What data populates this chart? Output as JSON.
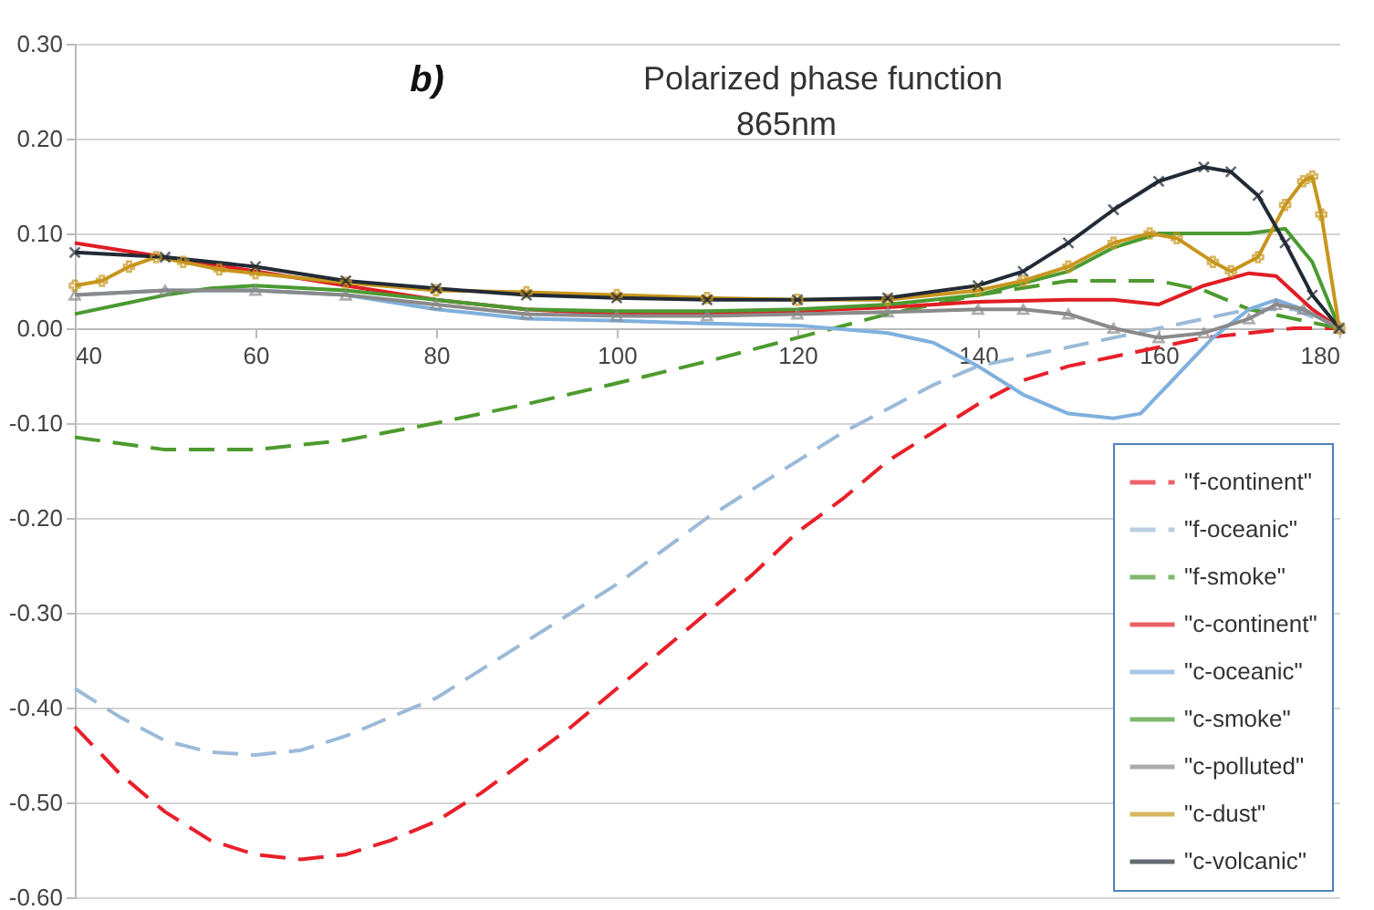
{
  "chart_data": {
    "type": "line",
    "title": "Polarized phase function",
    "subtitle": "865nm",
    "annotations": [
      "b)"
    ],
    "xlim": [
      40,
      180
    ],
    "xticks": [
      40,
      60,
      80,
      100,
      120,
      140,
      160,
      180
    ],
    "ylim": [
      -0.6,
      0.3
    ],
    "yticks": [
      {
        "value": -0.6,
        "label": "-0.60"
      },
      {
        "value": -0.5,
        "label": "-0.50"
      },
      {
        "value": -0.4,
        "label": "-0.40"
      },
      {
        "value": -0.3,
        "label": "-0.30"
      },
      {
        "value": -0.2,
        "label": "-0.20"
      },
      {
        "value": -0.1,
        "label": "-0.10"
      },
      {
        "value": 0,
        "label": "0.00"
      },
      {
        "value": 0.1,
        "label": "0.10"
      },
      {
        "value": 0.2,
        "label": "0.20"
      },
      {
        "value": 0.3,
        "label": "0.30"
      }
    ],
    "grid": "y",
    "legend": "bottom right",
    "series": [
      {
        "name": "\"f-continent\"",
        "color": "#e8202a",
        "line_style": "dashed",
        "x": [
          40,
          45,
          50,
          55,
          60,
          65,
          70,
          75,
          80,
          85,
          90,
          95,
          100,
          105,
          110,
          115,
          120,
          125,
          130,
          135,
          140,
          145,
          150,
          155,
          160,
          165,
          170,
          175,
          180
        ],
        "values": [
          -0.42,
          -0.47,
          -0.51,
          -0.54,
          -0.555,
          -0.56,
          -0.555,
          -0.54,
          -0.52,
          -0.49,
          -0.455,
          -0.42,
          -0.38,
          -0.34,
          -0.3,
          -0.26,
          -0.215,
          -0.18,
          -0.14,
          -0.11,
          -0.08,
          -0.055,
          -0.04,
          -0.03,
          -0.02,
          -0.01,
          -0.005,
          0,
          0
        ]
      },
      {
        "name": "\"f-oceanic\"",
        "color": "#9cbad8",
        "line_style": "dashed",
        "x": [
          40,
          45,
          50,
          55,
          60,
          65,
          70,
          75,
          80,
          85,
          90,
          95,
          100,
          105,
          110,
          115,
          120,
          125,
          130,
          135,
          140,
          145,
          150,
          155,
          160,
          165,
          170,
          175,
          180
        ],
        "values": [
          -0.38,
          -0.41,
          -0.435,
          -0.447,
          -0.45,
          -0.445,
          -0.43,
          -0.41,
          -0.39,
          -0.36,
          -0.33,
          -0.3,
          -0.27,
          -0.235,
          -0.2,
          -0.17,
          -0.14,
          -0.11,
          -0.085,
          -0.06,
          -0.04,
          -0.03,
          -0.02,
          -0.01,
          0,
          0.01,
          0.02,
          0.02,
          0
        ]
      },
      {
        "name": "\"f-smoke\"",
        "color": "#4e9a2e",
        "line_style": "dashed",
        "x": [
          40,
          50,
          60,
          70,
          80,
          90,
          100,
          110,
          120,
          130,
          140,
          150,
          160,
          165,
          170,
          175,
          180
        ],
        "values": [
          -0.115,
          -0.128,
          -0.128,
          -0.118,
          -0.1,
          -0.08,
          -0.058,
          -0.035,
          -0.01,
          0.015,
          0.035,
          0.05,
          0.05,
          0.04,
          0.02,
          0.01,
          0
        ]
      },
      {
        "name": "\"c-continent\"",
        "color": "#e01e24",
        "line_style": "solid",
        "x": [
          40,
          50,
          60,
          70,
          80,
          90,
          100,
          110,
          120,
          130,
          140,
          150,
          155,
          160,
          165,
          170,
          173,
          177,
          180
        ],
        "values": [
          0.09,
          0.075,
          0.06,
          0.045,
          0.03,
          0.02,
          0.015,
          0.015,
          0.018,
          0.022,
          0.028,
          0.03,
          0.03,
          0.025,
          0.045,
          0.058,
          0.055,
          0.02,
          0
        ]
      },
      {
        "name": "\"c-oceanic\"",
        "color": "#7fb0de",
        "line_style": "solid",
        "x": [
          40,
          50,
          60,
          70,
          80,
          90,
          100,
          110,
          120,
          130,
          135,
          140,
          145,
          150,
          155,
          158,
          162,
          166,
          170,
          173,
          176,
          180
        ],
        "values": [
          0.035,
          0.04,
          0.04,
          0.035,
          0.02,
          0.01,
          0.008,
          0.005,
          0.003,
          -0.005,
          -0.015,
          -0.04,
          -0.07,
          -0.09,
          -0.095,
          -0.09,
          -0.05,
          -0.01,
          0.02,
          0.03,
          0.02,
          0
        ]
      },
      {
        "name": "\"c-smoke\"",
        "color": "#4a9a32",
        "line_style": "solid",
        "x": [
          40,
          45,
          50,
          55,
          60,
          70,
          80,
          90,
          100,
          110,
          120,
          130,
          140,
          150,
          155,
          160,
          165,
          170,
          174,
          177,
          180
        ],
        "values": [
          0.015,
          0.025,
          0.035,
          0.042,
          0.045,
          0.04,
          0.03,
          0.02,
          0.018,
          0.018,
          0.02,
          0.025,
          0.035,
          0.06,
          0.085,
          0.1,
          0.1,
          0.1,
          0.105,
          0.07,
          0
        ]
      },
      {
        "name": "\"c-polluted\"",
        "color": "#8a8a8a",
        "line_style": "solid",
        "marker": "triangle",
        "x": [
          40,
          50,
          60,
          70,
          80,
          90,
          100,
          110,
          120,
          130,
          140,
          145,
          150,
          155,
          160,
          165,
          170,
          173,
          176,
          180
        ],
        "values": [
          0.035,
          0.04,
          0.04,
          0.035,
          0.025,
          0.015,
          0.013,
          0.013,
          0.015,
          0.017,
          0.02,
          0.02,
          0.015,
          0,
          -0.01,
          -0.005,
          0.01,
          0.025,
          0.02,
          0
        ]
      },
      {
        "name": "\"c-dust\"",
        "color": "#c8961e",
        "line_style": "solid",
        "marker": "plus",
        "x": [
          40,
          43,
          46,
          49,
          52,
          56,
          60,
          70,
          80,
          90,
          100,
          110,
          120,
          130,
          140,
          145,
          150,
          155,
          159,
          162,
          166,
          168,
          171,
          174,
          176,
          177,
          178,
          180
        ],
        "values": [
          0.045,
          0.05,
          0.065,
          0.075,
          0.07,
          0.062,
          0.058,
          0.048,
          0.04,
          0.038,
          0.035,
          0.032,
          0.03,
          0.03,
          0.04,
          0.05,
          0.065,
          0.09,
          0.1,
          0.095,
          0.07,
          0.06,
          0.075,
          0.13,
          0.155,
          0.16,
          0.12,
          0
        ]
      },
      {
        "name": "\"c-volcanic\"",
        "color": "#222a35",
        "line_style": "solid",
        "marker": "cross",
        "x": [
          40,
          50,
          60,
          70,
          80,
          90,
          100,
          110,
          120,
          130,
          140,
          145,
          150,
          155,
          160,
          165,
          168,
          171,
          174,
          177,
          180
        ],
        "values": [
          0.08,
          0.075,
          0.065,
          0.05,
          0.042,
          0.035,
          0.032,
          0.03,
          0.03,
          0.032,
          0.045,
          0.06,
          0.09,
          0.125,
          0.155,
          0.17,
          0.165,
          0.14,
          0.09,
          0.035,
          0
        ]
      }
    ]
  }
}
